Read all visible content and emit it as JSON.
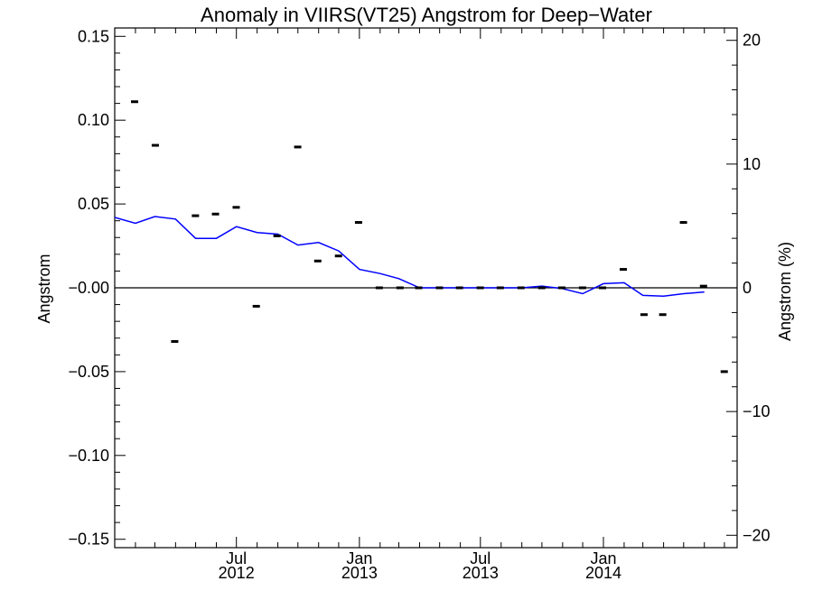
{
  "chart_data": {
    "type": "line",
    "title": "Anomaly in VIIRS(VT25) Angstrom for Deep−Water",
    "ylabel_left": "Angstrom",
    "ylabel_right": "Angstrom (%)",
    "xlabel": "",
    "xlim": [
      "2012-01-01",
      "2014-07-20"
    ],
    "ylim_left": [
      -0.155,
      0.155
    ],
    "ylim_right": [
      -21,
      21
    ],
    "x_ticks": [
      {
        "date": "2012-07-01",
        "month": "Jul",
        "year": "2012"
      },
      {
        "date": "2013-01-01",
        "month": "Jan",
        "year": "2013"
      },
      {
        "date": "2013-07-01",
        "month": "Jul",
        "year": "2013"
      },
      {
        "date": "2014-01-01",
        "month": "Jan",
        "year": "2014"
      }
    ],
    "y_ticks_left": [
      {
        "value": 0.15,
        "label": "0.15"
      },
      {
        "value": 0.1,
        "label": "0.10"
      },
      {
        "value": 0.05,
        "label": "0.05"
      },
      {
        "value": 0.0,
        "label": "−0.00"
      },
      {
        "value": -0.05,
        "label": "−0.05"
      },
      {
        "value": -0.1,
        "label": "−0.10"
      },
      {
        "value": -0.15,
        "label": "−0.15"
      }
    ],
    "y_ticks_right": [
      {
        "value": 20,
        "label": "20"
      },
      {
        "value": 10,
        "label": "10"
      },
      {
        "value": 0,
        "label": "0"
      },
      {
        "value": -10,
        "label": "−10"
      },
      {
        "value": -20,
        "label": "−20"
      }
    ],
    "reference_line": 0,
    "series": [
      {
        "kind": "line",
        "color": "#0000ff",
        "axis": "left",
        "points": [
          {
            "x": "2012-01-01",
            "y": 0.042
          },
          {
            "x": "2012-02-01",
            "y": 0.0385
          },
          {
            "x": "2012-03-01",
            "y": 0.0425
          },
          {
            "x": "2012-04-01",
            "y": 0.041
          },
          {
            "x": "2012-05-01",
            "y": 0.0295
          },
          {
            "x": "2012-06-01",
            "y": 0.0295
          },
          {
            "x": "2012-07-01",
            "y": 0.0365
          },
          {
            "x": "2012-08-01",
            "y": 0.033
          },
          {
            "x": "2012-09-01",
            "y": 0.032
          },
          {
            "x": "2012-10-01",
            "y": 0.0255
          },
          {
            "x": "2012-11-01",
            "y": 0.027
          },
          {
            "x": "2012-12-01",
            "y": 0.022
          },
          {
            "x": "2013-01-01",
            "y": 0.011
          },
          {
            "x": "2013-02-01",
            "y": 0.0085
          },
          {
            "x": "2013-03-01",
            "y": 0.0055
          },
          {
            "x": "2013-04-01",
            "y": 0.0
          },
          {
            "x": "2013-05-01",
            "y": 0.0
          },
          {
            "x": "2013-06-01",
            "y": 0.0
          },
          {
            "x": "2013-07-01",
            "y": 0.0
          },
          {
            "x": "2013-08-01",
            "y": 0.0
          },
          {
            "x": "2013-09-01",
            "y": 0.0
          },
          {
            "x": "2013-10-01",
            "y": 0.001
          },
          {
            "x": "2013-11-01",
            "y": -0.0005
          },
          {
            "x": "2013-12-01",
            "y": -0.0035
          },
          {
            "x": "2014-01-01",
            "y": 0.0025
          },
          {
            "x": "2014-02-01",
            "y": 0.003
          },
          {
            "x": "2014-03-01",
            "y": -0.0045
          },
          {
            "x": "2014-04-01",
            "y": -0.005
          },
          {
            "x": "2014-05-01",
            "y": -0.0035
          },
          {
            "x": "2014-06-01",
            "y": -0.0025
          }
        ]
      },
      {
        "kind": "markers",
        "marker": "dash",
        "color": "#000000",
        "axis": "left",
        "points": [
          {
            "x": "2012-01-01",
            "y": 0.111
          },
          {
            "x": "2012-02-01",
            "y": 0.085
          },
          {
            "x": "2012-03-01",
            "y": -0.032
          },
          {
            "x": "2012-04-01",
            "y": 0.043
          },
          {
            "x": "2012-05-01",
            "y": 0.044
          },
          {
            "x": "2012-06-01",
            "y": 0.048
          },
          {
            "x": "2012-07-01",
            "y": -0.011
          },
          {
            "x": "2012-08-01",
            "y": 0.031
          },
          {
            "x": "2012-09-01",
            "y": 0.084
          },
          {
            "x": "2012-10-01",
            "y": 0.016
          },
          {
            "x": "2012-11-01",
            "y": 0.019
          },
          {
            "x": "2012-12-01",
            "y": 0.039
          },
          {
            "x": "2013-01-01",
            "y": 0.0
          },
          {
            "x": "2013-02-01",
            "y": 0.0
          },
          {
            "x": "2013-03-01",
            "y": 0.0
          },
          {
            "x": "2013-04-01",
            "y": 0.0
          },
          {
            "x": "2013-05-01",
            "y": 0.0
          },
          {
            "x": "2013-06-01",
            "y": 0.0
          },
          {
            "x": "2013-07-01",
            "y": 0.0
          },
          {
            "x": "2013-08-01",
            "y": 0.0
          },
          {
            "x": "2013-09-01",
            "y": 0.0
          },
          {
            "x": "2013-10-01",
            "y": 0.0
          },
          {
            "x": "2013-11-01",
            "y": 0.0
          },
          {
            "x": "2013-12-01",
            "y": 0.0
          },
          {
            "x": "2014-01-01",
            "y": 0.011
          },
          {
            "x": "2014-02-01",
            "y": -0.016
          },
          {
            "x": "2014-03-01",
            "y": -0.016
          },
          {
            "x": "2014-04-01",
            "y": 0.039
          },
          {
            "x": "2014-05-01",
            "y": 0.001
          },
          {
            "x": "2014-06-01",
            "y": -0.05
          }
        ]
      }
    ]
  }
}
